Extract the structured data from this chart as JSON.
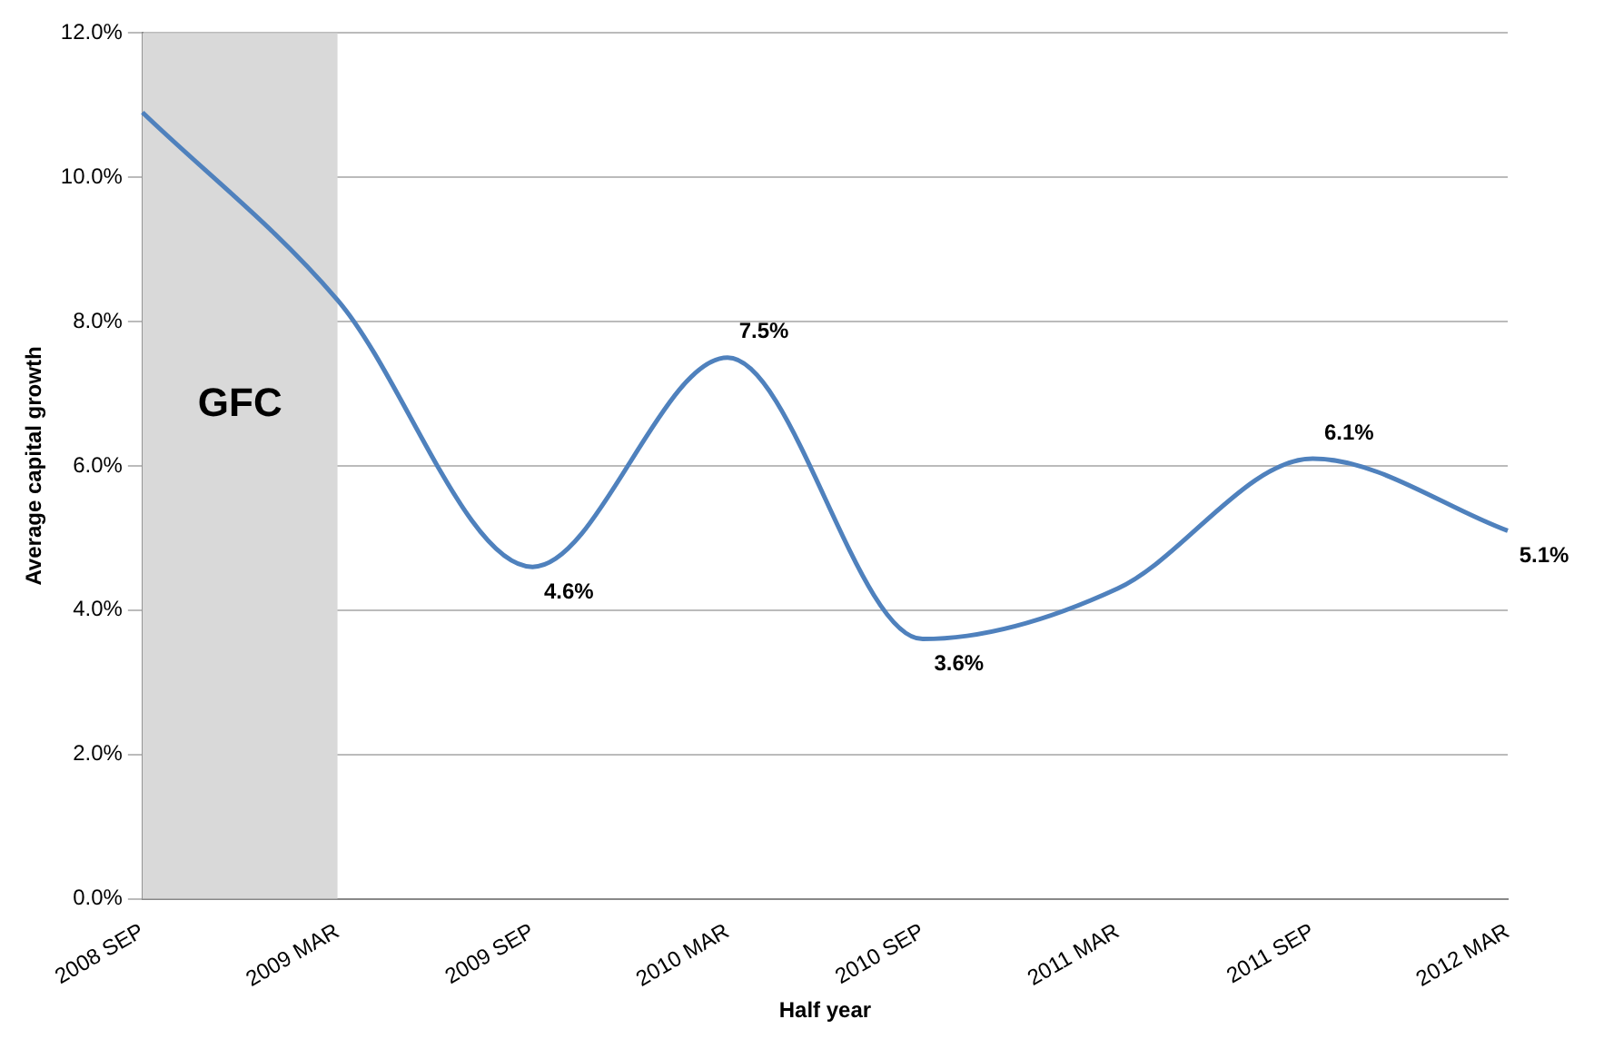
{
  "chart_data": {
    "type": "line",
    "xlabel": "Half year",
    "ylabel": "Average capital growth",
    "categories": [
      "2008 SEP",
      "2009 MAR",
      "2009 SEP",
      "2010 MAR",
      "2010 SEP",
      "2011 MAR",
      "2011 SEP",
      "2012 MAR"
    ],
    "series": [
      {
        "color": "#4f81bd",
        "values": [
          10.9,
          8.3,
          4.6,
          7.5,
          3.6,
          4.3,
          6.1,
          5.1
        ],
        "value_labels": [
          null,
          null,
          "4.6%",
          "7.5%",
          "3.6%",
          null,
          "6.1%",
          "5.1%"
        ]
      }
    ],
    "ylim": [
      0,
      12
    ],
    "yticks": [
      {
        "value": 0,
        "label": "0.0%"
      },
      {
        "value": 2,
        "label": "2.0%"
      },
      {
        "value": 4,
        "label": "4.0%"
      },
      {
        "value": 6,
        "label": "6.0%"
      },
      {
        "value": 8,
        "label": "8.0%"
      },
      {
        "value": 10,
        "label": "10.0%"
      },
      {
        "value": 12,
        "label": "12.0%"
      }
    ],
    "bands": [
      {
        "axis": "x",
        "from": "2008 SEP",
        "to": "2009 MAR",
        "label": "GFC",
        "color": "#d9d9d9"
      }
    ],
    "grid": "y",
    "legend": false,
    "marker": "none",
    "line_style": "solid"
  }
}
